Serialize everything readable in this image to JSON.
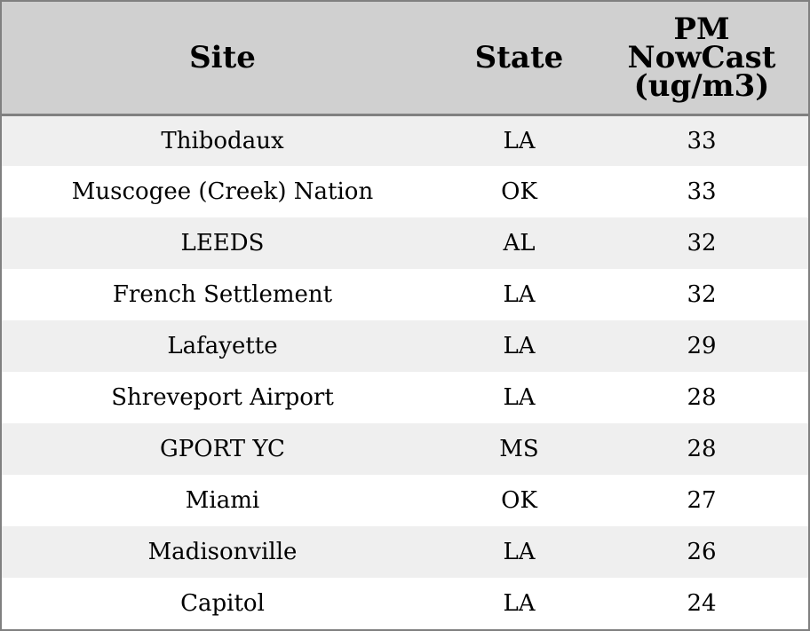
{
  "table": {
    "columns": {
      "site": "Site",
      "state": "State",
      "pm_line1": "PM",
      "pm_line2": "NowCast",
      "pm_line3": "(ug/m3)"
    },
    "rows": [
      {
        "site": "Thibodaux",
        "state": "LA",
        "pm": "33"
      },
      {
        "site": "Muscogee (Creek) Nation",
        "state": "OK",
        "pm": "33"
      },
      {
        "site": "LEEDS",
        "state": "AL",
        "pm": "32"
      },
      {
        "site": "French Settlement",
        "state": "LA",
        "pm": "32"
      },
      {
        "site": "Lafayette",
        "state": "LA",
        "pm": "29"
      },
      {
        "site": "Shreveport Airport",
        "state": "LA",
        "pm": "28"
      },
      {
        "site": "GPORT YC",
        "state": "MS",
        "pm": "28"
      },
      {
        "site": "Miami",
        "state": "OK",
        "pm": "27"
      },
      {
        "site": "Madisonville",
        "state": "LA",
        "pm": "26"
      },
      {
        "site": "Capitol",
        "state": "LA",
        "pm": "24"
      }
    ]
  },
  "colors": {
    "header_bg": "#d0d0d0",
    "row_shade": "#efefef",
    "row_plain": "#ffffff",
    "border": "#808080"
  }
}
